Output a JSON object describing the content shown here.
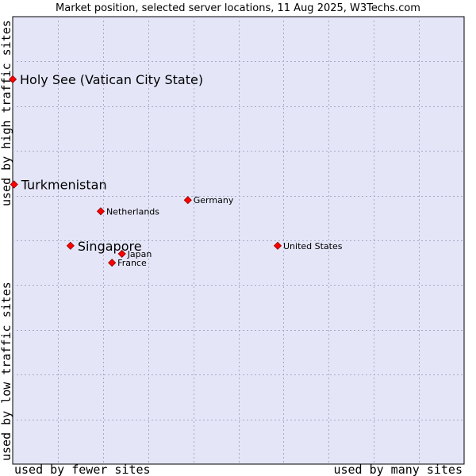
{
  "chart_data": {
    "type": "scatter",
    "title": "Market position, selected server locations, 11 Aug 2025, W3Techs.com",
    "xlabel_left": "used by fewer sites",
    "xlabel_right": "used by many sites",
    "ylabel_bottom": "used by low traffic sites",
    "ylabel_top": "used by high traffic sites",
    "grid": true,
    "colors": {
      "plot_bg": "#e4e6f8",
      "grid": "#a8a8c4",
      "marker": "#ff0000",
      "marker_stroke": "#8b0000"
    },
    "xlim": [
      0,
      10
    ],
    "ylim": [
      0,
      10
    ],
    "points": [
      {
        "label": "Holy See (Vatican City State)",
        "x": 0.0,
        "y": 8.6,
        "size": "large"
      },
      {
        "label": "Turkmenistan",
        "x": 0.03,
        "y": 6.25,
        "size": "large"
      },
      {
        "label": "Germany",
        "x": 3.88,
        "y": 5.9,
        "size": "small"
      },
      {
        "label": "Netherlands",
        "x": 1.95,
        "y": 5.65,
        "size": "small"
      },
      {
        "label": "Singapore",
        "x": 1.28,
        "y": 4.88,
        "size": "large"
      },
      {
        "label": "United States",
        "x": 5.87,
        "y": 4.88,
        "size": "small"
      },
      {
        "label": "Japan",
        "x": 2.42,
        "y": 4.7,
        "size": "small"
      },
      {
        "label": "France",
        "x": 2.2,
        "y": 4.5,
        "size": "small"
      }
    ]
  }
}
